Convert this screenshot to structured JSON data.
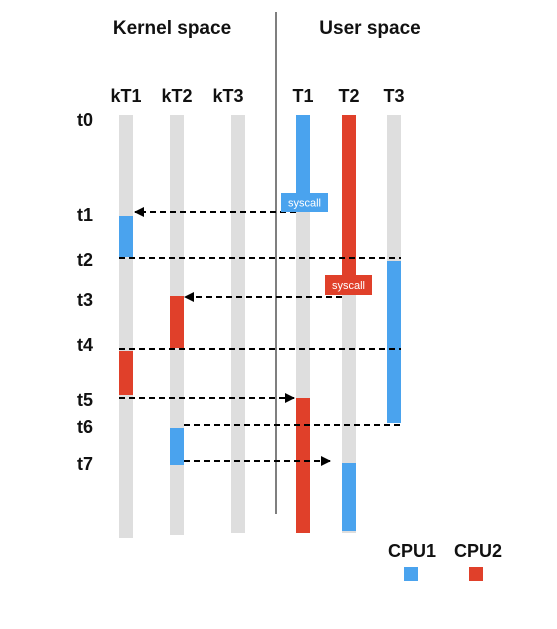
{
  "headers": {
    "kernel": "Kernel space",
    "user": "User space"
  },
  "colors": {
    "cpu1": "#4aa3ee",
    "cpu2": "#e0402a",
    "lane": "#dedede",
    "divider": "#555555"
  },
  "threads": [
    "kT1",
    "kT2",
    "kT3",
    "T1",
    "T2",
    "T3"
  ],
  "time_labels": [
    "t0",
    "t1",
    "t2",
    "t3",
    "t4",
    "t5",
    "t6",
    "t7"
  ],
  "execution_segments": [
    {
      "thread": "T1",
      "cpu": "cpu1",
      "from": "t0",
      "to": "t1"
    },
    {
      "thread": "kT1",
      "cpu": "cpu1",
      "from": "t1",
      "to": "t2"
    },
    {
      "thread": "T2",
      "cpu": "cpu2",
      "from": "t0",
      "to": "t3"
    },
    {
      "thread": "T3",
      "cpu": "cpu1",
      "from": "t2",
      "to": "t6"
    },
    {
      "thread": "kT2",
      "cpu": "cpu2",
      "from": "t3",
      "to": "t4"
    },
    {
      "thread": "kT1",
      "cpu": "cpu2",
      "from": "t4",
      "to": "t5"
    },
    {
      "thread": "T1",
      "cpu": "cpu2",
      "from": "t5",
      "to": "end"
    },
    {
      "thread": "kT2",
      "cpu": "cpu1",
      "from": "t6",
      "to": "t7"
    },
    {
      "thread": "T2",
      "cpu": "cpu1",
      "from": "t7",
      "to": "end"
    }
  ],
  "syscall_labels": [
    {
      "text": "syscall",
      "thread": "T1",
      "cpu": "cpu1"
    },
    {
      "text": "syscall",
      "thread": "T2",
      "cpu": "cpu2"
    }
  ],
  "legend": [
    {
      "label": "CPU1",
      "cpu": "cpu1"
    },
    {
      "label": "CPU2",
      "cpu": "cpu2"
    }
  ]
}
